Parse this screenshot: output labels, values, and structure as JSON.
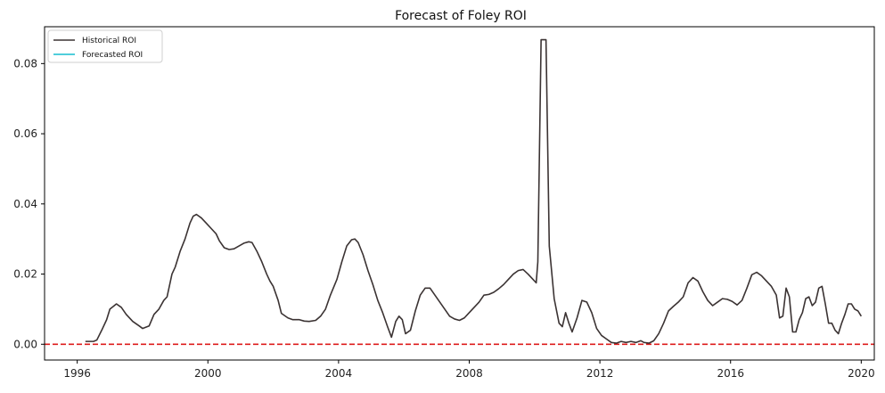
{
  "chart_data": {
    "type": "line",
    "title": "Forecast of Foley ROI",
    "xlabel": "",
    "ylabel": "",
    "xlim": [
      1995.0,
      2020.4
    ],
    "ylim": [
      -0.0045,
      0.0905
    ],
    "xticks": [
      1996,
      2000,
      2004,
      2008,
      2012,
      2016,
      2020
    ],
    "yticks": [
      0.0,
      0.02,
      0.04,
      0.06,
      0.08
    ],
    "ytick_labels": [
      "0.00",
      "0.02",
      "0.04",
      "0.06",
      "0.08"
    ],
    "legend_position": "top-left",
    "grid": false,
    "reference_line": {
      "y": 0.0,
      "color": "#dd1c1c",
      "style": "dashed"
    },
    "series": [
      {
        "name": "Historical ROI",
        "color": "#3b3333",
        "points": [
          [
            1996.25,
            0.0008
          ],
          [
            1996.5,
            0.0008
          ],
          [
            1996.6,
            0.0012
          ],
          [
            1996.75,
            0.004
          ],
          [
            1996.9,
            0.007
          ],
          [
            1997.0,
            0.01
          ],
          [
            1997.2,
            0.0115
          ],
          [
            1997.35,
            0.0105
          ],
          [
            1997.5,
            0.0085
          ],
          [
            1997.7,
            0.0065
          ],
          [
            1997.9,
            0.0052
          ],
          [
            1998.0,
            0.0045
          ],
          [
            1998.2,
            0.0052
          ],
          [
            1998.35,
            0.0085
          ],
          [
            1998.5,
            0.01
          ],
          [
            1998.65,
            0.0125
          ],
          [
            1998.75,
            0.0135
          ],
          [
            1998.9,
            0.02
          ],
          [
            1999.0,
            0.022
          ],
          [
            1999.15,
            0.0265
          ],
          [
            1999.3,
            0.03
          ],
          [
            1999.45,
            0.0345
          ],
          [
            1999.55,
            0.0365
          ],
          [
            1999.65,
            0.037
          ],
          [
            1999.8,
            0.036
          ],
          [
            1999.95,
            0.0345
          ],
          [
            2000.1,
            0.033
          ],
          [
            2000.25,
            0.0315
          ],
          [
            2000.35,
            0.0295
          ],
          [
            2000.5,
            0.0275
          ],
          [
            2000.65,
            0.027
          ],
          [
            2000.8,
            0.0272
          ],
          [
            2000.95,
            0.028
          ],
          [
            2001.1,
            0.0288
          ],
          [
            2001.25,
            0.0292
          ],
          [
            2001.35,
            0.029
          ],
          [
            2001.5,
            0.0265
          ],
          [
            2001.65,
            0.0235
          ],
          [
            2001.8,
            0.02
          ],
          [
            2001.9,
            0.018
          ],
          [
            2002.0,
            0.0165
          ],
          [
            2002.15,
            0.0125
          ],
          [
            2002.25,
            0.0088
          ],
          [
            2002.45,
            0.0075
          ],
          [
            2002.6,
            0.007
          ],
          [
            2002.8,
            0.007
          ],
          [
            2002.95,
            0.0066
          ],
          [
            2003.1,
            0.0065
          ],
          [
            2003.3,
            0.0068
          ],
          [
            2003.45,
            0.008
          ],
          [
            2003.6,
            0.01
          ],
          [
            2003.75,
            0.014
          ],
          [
            2003.95,
            0.0185
          ],
          [
            2004.1,
            0.0235
          ],
          [
            2004.25,
            0.028
          ],
          [
            2004.4,
            0.0298
          ],
          [
            2004.5,
            0.03
          ],
          [
            2004.6,
            0.029
          ],
          [
            2004.75,
            0.0255
          ],
          [
            2004.9,
            0.021
          ],
          [
            2005.05,
            0.017
          ],
          [
            2005.2,
            0.0125
          ],
          [
            2005.35,
            0.009
          ],
          [
            2005.5,
            0.005
          ],
          [
            2005.62,
            0.002
          ],
          [
            2005.75,
            0.0065
          ],
          [
            2005.85,
            0.008
          ],
          [
            2005.95,
            0.007
          ],
          [
            2006.05,
            0.003
          ],
          [
            2006.2,
            0.004
          ],
          [
            2006.35,
            0.0095
          ],
          [
            2006.5,
            0.014
          ],
          [
            2006.65,
            0.016
          ],
          [
            2006.8,
            0.016
          ],
          [
            2006.95,
            0.014
          ],
          [
            2007.1,
            0.012
          ],
          [
            2007.25,
            0.01
          ],
          [
            2007.4,
            0.008
          ],
          [
            2007.55,
            0.0072
          ],
          [
            2007.7,
            0.0068
          ],
          [
            2007.85,
            0.0075
          ],
          [
            2008.0,
            0.009
          ],
          [
            2008.15,
            0.0105
          ],
          [
            2008.3,
            0.012
          ],
          [
            2008.45,
            0.014
          ],
          [
            2008.6,
            0.0142
          ],
          [
            2008.75,
            0.0148
          ],
          [
            2008.9,
            0.0158
          ],
          [
            2009.05,
            0.017
          ],
          [
            2009.2,
            0.0185
          ],
          [
            2009.35,
            0.02
          ],
          [
            2009.5,
            0.021
          ],
          [
            2009.65,
            0.0213
          ],
          [
            2009.8,
            0.02
          ],
          [
            2009.95,
            0.0185
          ],
          [
            2010.05,
            0.0175
          ],
          [
            2010.1,
            0.0235
          ],
          [
            2010.2,
            0.0868
          ],
          [
            2010.35,
            0.0868
          ],
          [
            2010.45,
            0.028
          ],
          [
            2010.6,
            0.013
          ],
          [
            2010.75,
            0.006
          ],
          [
            2010.85,
            0.005
          ],
          [
            2010.95,
            0.009
          ],
          [
            2011.05,
            0.006
          ],
          [
            2011.15,
            0.0035
          ],
          [
            2011.3,
            0.0075
          ],
          [
            2011.45,
            0.0125
          ],
          [
            2011.6,
            0.012
          ],
          [
            2011.75,
            0.009
          ],
          [
            2011.9,
            0.0045
          ],
          [
            2012.05,
            0.0025
          ],
          [
            2012.2,
            0.0015
          ],
          [
            2012.35,
            0.0005
          ],
          [
            2012.5,
            0.0003
          ],
          [
            2012.65,
            0.0008
          ],
          [
            2012.8,
            0.0005
          ],
          [
            2012.95,
            0.0008
          ],
          [
            2013.1,
            0.0005
          ],
          [
            2013.25,
            0.001
          ],
          [
            2013.35,
            0.0005
          ],
          [
            2013.5,
            0.0003
          ],
          [
            2013.65,
            0.001
          ],
          [
            2013.8,
            0.003
          ],
          [
            2013.95,
            0.006
          ],
          [
            2014.1,
            0.0095
          ],
          [
            2014.25,
            0.0108
          ],
          [
            2014.4,
            0.012
          ],
          [
            2014.55,
            0.0135
          ],
          [
            2014.7,
            0.0175
          ],
          [
            2014.85,
            0.019
          ],
          [
            2015.0,
            0.018
          ],
          [
            2015.15,
            0.015
          ],
          [
            2015.3,
            0.0125
          ],
          [
            2015.45,
            0.011
          ],
          [
            2015.6,
            0.012
          ],
          [
            2015.75,
            0.013
          ],
          [
            2015.9,
            0.0128
          ],
          [
            2016.05,
            0.0122
          ],
          [
            2016.2,
            0.0112
          ],
          [
            2016.35,
            0.0125
          ],
          [
            2016.5,
            0.016
          ],
          [
            2016.65,
            0.0198
          ],
          [
            2016.8,
            0.0205
          ],
          [
            2016.95,
            0.0195
          ],
          [
            2017.1,
            0.018
          ],
          [
            2017.25,
            0.0165
          ],
          [
            2017.4,
            0.014
          ],
          [
            2017.5,
            0.0075
          ],
          [
            2017.6,
            0.008
          ],
          [
            2017.7,
            0.016
          ],
          [
            2017.8,
            0.0135
          ],
          [
            2017.9,
            0.0035
          ],
          [
            2018.0,
            0.0035
          ],
          [
            2018.1,
            0.007
          ],
          [
            2018.2,
            0.009
          ],
          [
            2018.3,
            0.013
          ],
          [
            2018.4,
            0.0135
          ],
          [
            2018.5,
            0.011
          ],
          [
            2018.6,
            0.012
          ],
          [
            2018.7,
            0.016
          ],
          [
            2018.8,
            0.0165
          ],
          [
            2018.9,
            0.0115
          ],
          [
            2019.0,
            0.006
          ],
          [
            2019.1,
            0.006
          ],
          [
            2019.2,
            0.004
          ],
          [
            2019.3,
            0.003
          ],
          [
            2019.4,
            0.006
          ],
          [
            2019.5,
            0.0085
          ],
          [
            2019.6,
            0.0115
          ],
          [
            2019.7,
            0.0115
          ],
          [
            2019.8,
            0.01
          ],
          [
            2019.9,
            0.0095
          ],
          [
            2020.0,
            0.008
          ]
        ]
      },
      {
        "name": "Forecasted ROI",
        "color": "#17becf",
        "points": []
      }
    ]
  }
}
